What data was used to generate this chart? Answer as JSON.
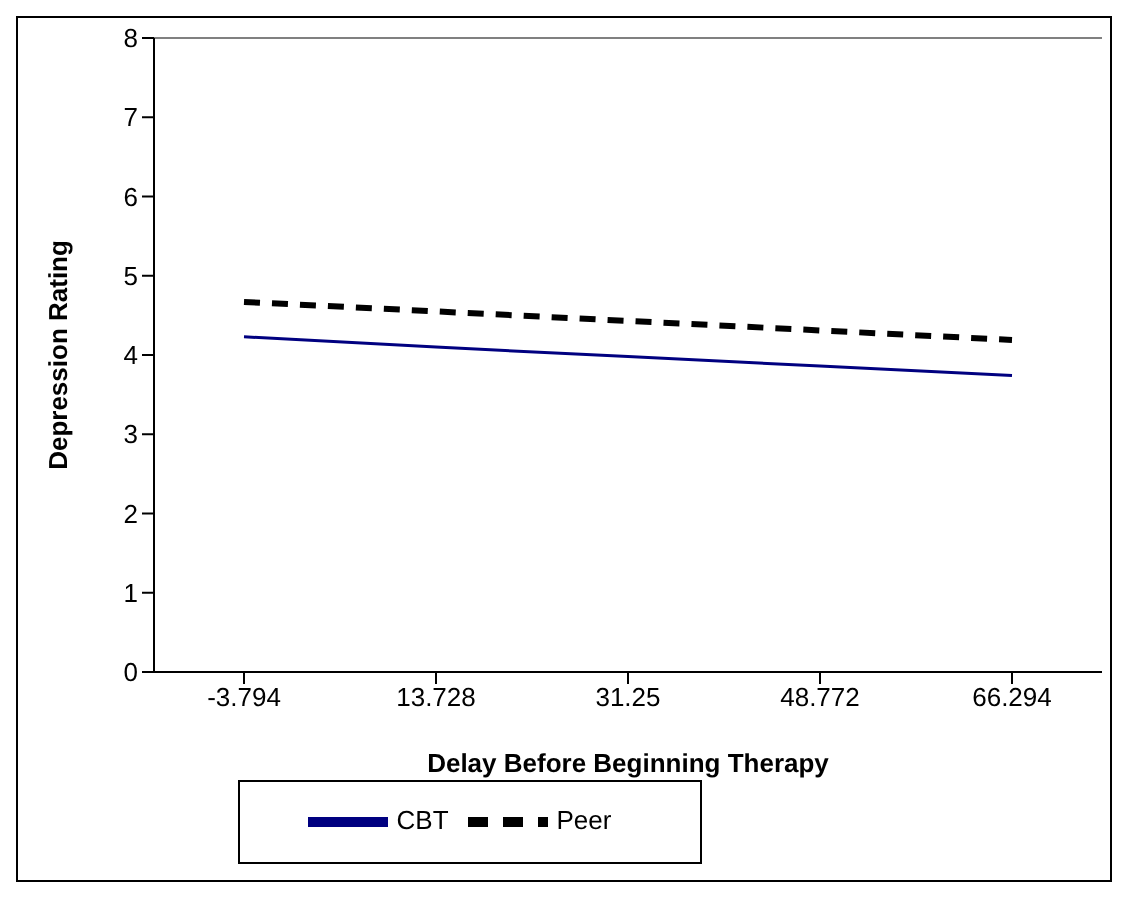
{
  "chart_data": {
    "type": "line",
    "xlabel": "Delay Before Beginning Therapy",
    "ylabel": "Depression Rating",
    "categories": [
      "-3.794",
      "13.728",
      "31.25",
      "48.772",
      "66.294"
    ],
    "series": [
      {
        "name": "CBT",
        "color": "#000080",
        "values": [
          4.23,
          4.1,
          3.98,
          3.86,
          3.74
        ],
        "line_style": "solid"
      },
      {
        "name": "Peer",
        "color": "#000000",
        "values": [
          4.67,
          4.55,
          4.43,
          4.31,
          4.19
        ],
        "line_style": "dashed"
      }
    ],
    "ylim": [
      0,
      8
    ],
    "yticks": [
      0,
      1,
      2,
      3,
      4,
      5,
      6,
      7,
      8
    ],
    "legend": "bottom",
    "marker": "none"
  }
}
